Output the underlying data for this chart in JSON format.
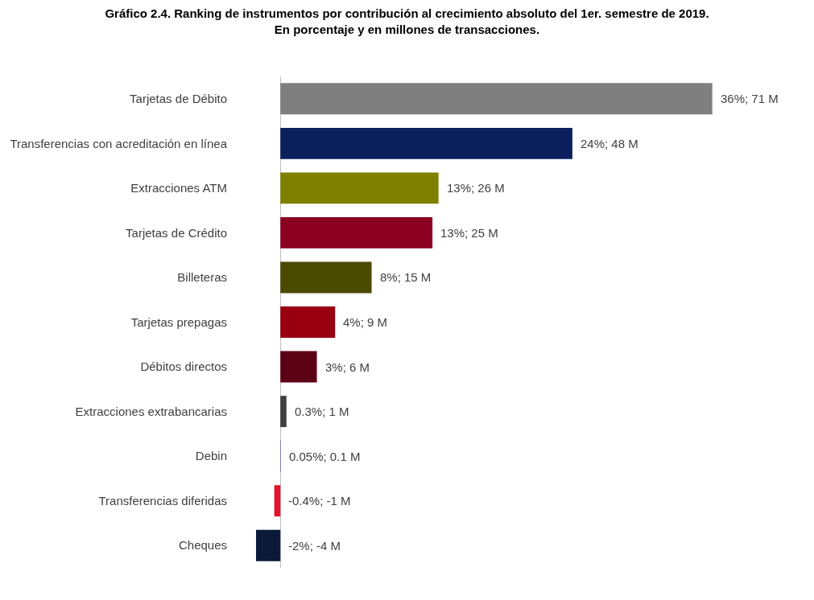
{
  "chart_data": {
    "type": "bar",
    "orientation": "horizontal",
    "title": "Gráfico 2.4. Ranking de instrumentos por contribución al crecimiento absoluto del 1er. semestre de 2019.",
    "subtitle": "En porcentaje y en millones de transacciones.",
    "categories": [
      "Tarjetas de Débito",
      "Transferencias con acreditación en línea",
      "Extracciones ATM",
      "Tarjetas de Crédito",
      "Billeteras",
      "Tarjetas prepagas",
      "Débitos directos",
      "Extracciones extrabancarias",
      "Debin",
      "Transferencias diferidas",
      "Cheques"
    ],
    "values": [
      71,
      48,
      26,
      25,
      15,
      9,
      6,
      1,
      0.1,
      -1,
      -4
    ],
    "value_labels": [
      "36%; 71 M",
      "24%; 48 M",
      "13%; 26 M",
      "13%; 25 M",
      "8%; 15 M",
      "4%; 9 M",
      "3%; 6 M",
      "0.3%; 1 M",
      "0.05%; 0.1 M",
      "-0.4%; -1 M",
      "-2%; -4 M"
    ],
    "colors": [
      "#7f7f7f",
      "#0b1f5c",
      "#7f7f00",
      "#8b0020",
      "#4a4a00",
      "#990012",
      "#5c0015",
      "#404040",
      "#8080b0",
      "#e8102a",
      "#0c1a3a"
    ],
    "tick_labels": "y",
    "legend": false
  }
}
